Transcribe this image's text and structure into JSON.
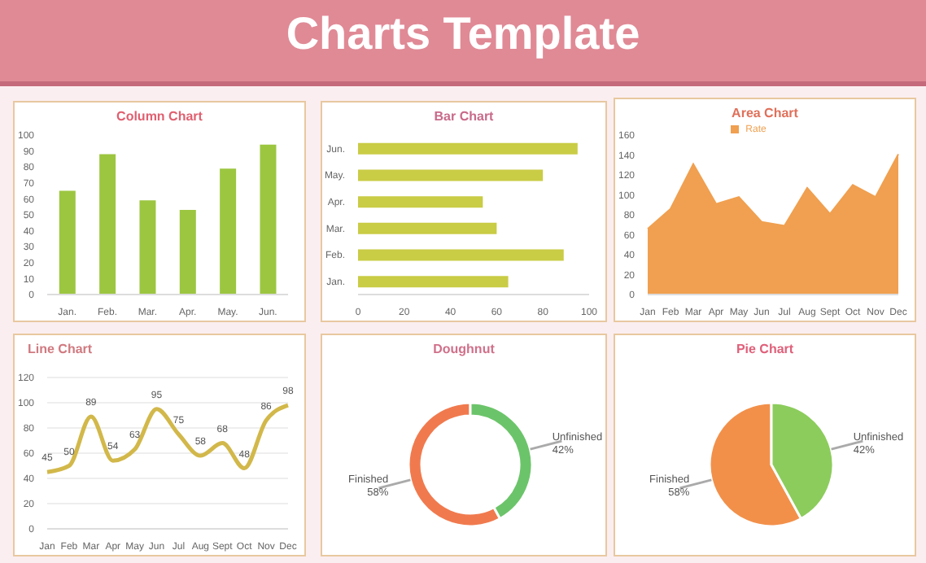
{
  "chart_data": [
    {
      "type": "other",
      "title": "Charts Template"
    },
    {
      "type": "bar",
      "title": "Column Chart",
      "categories": [
        "Jan.",
        "Feb.",
        "Mar.",
        "Apr.",
        "May.",
        "Jun."
      ],
      "values": [
        65,
        88,
        59,
        53,
        79,
        94
      ],
      "color": "#9cc640",
      "ylim": [
        0,
        100
      ],
      "yticks": [
        0,
        10,
        20,
        30,
        40,
        50,
        60,
        70,
        80,
        90,
        100
      ],
      "grid": false
    },
    {
      "type": "bar",
      "title": "Bar Chart",
      "orientation": "horizontal",
      "categories": [
        "Jun.",
        "May.",
        "Apr.",
        "Mar.",
        "Feb.",
        "Jan."
      ],
      "values": [
        95,
        80,
        54,
        60,
        89,
        65
      ],
      "color": "#c9cc45",
      "xlim": [
        0,
        100
      ],
      "xticks": [
        0,
        20,
        40,
        60,
        80,
        100
      ],
      "grid": false
    },
    {
      "type": "area",
      "title": "Area Chart",
      "categories": [
        "Jan",
        "Feb",
        "Mar",
        "Apr",
        "May",
        "Jun",
        "Jul",
        "Aug",
        "Sept",
        "Oct",
        "Nov",
        "Dec"
      ],
      "series": [
        {
          "name": "Rate",
          "color": "#f0a050",
          "values": [
            66,
            86,
            131,
            91,
            98,
            73,
            69,
            107,
            81,
            110,
            98,
            141
          ]
        }
      ],
      "ylim": [
        0,
        160
      ],
      "yticks": [
        0,
        20,
        40,
        60,
        80,
        100,
        120,
        140,
        160
      ],
      "legend": "top",
      "grid": false
    },
    {
      "type": "line",
      "title": "Line Chart",
      "categories": [
        "Jan",
        "Feb",
        "Mar",
        "Apr",
        "May",
        "Jun",
        "Jul",
        "Aug",
        "Sept",
        "Oct",
        "Nov",
        "Dec"
      ],
      "values": [
        45,
        50,
        89,
        54,
        63,
        95,
        75,
        58,
        68,
        48,
        86,
        98
      ],
      "color": "#d2b84a",
      "ylim": [
        0,
        120
      ],
      "yticks": [
        0,
        20,
        40,
        60,
        80,
        100,
        120
      ],
      "grid": "y",
      "data_labels": true,
      "marker": "none"
    },
    {
      "type": "donut",
      "title": "Doughnut",
      "categories": [
        "Finished",
        "Unfinished"
      ],
      "values": [
        58,
        42
      ],
      "colors": [
        "#f07a4e",
        "#6cc46a"
      ],
      "value_labels": [
        "58%",
        "42%"
      ]
    },
    {
      "type": "pie",
      "title": "Pie Chart",
      "categories": [
        "Finished",
        "Unfinished"
      ],
      "values": [
        58,
        42
      ],
      "colors": [
        "#f2904a",
        "#8ccc5c"
      ],
      "value_labels": [
        "58%",
        "42%"
      ]
    }
  ]
}
